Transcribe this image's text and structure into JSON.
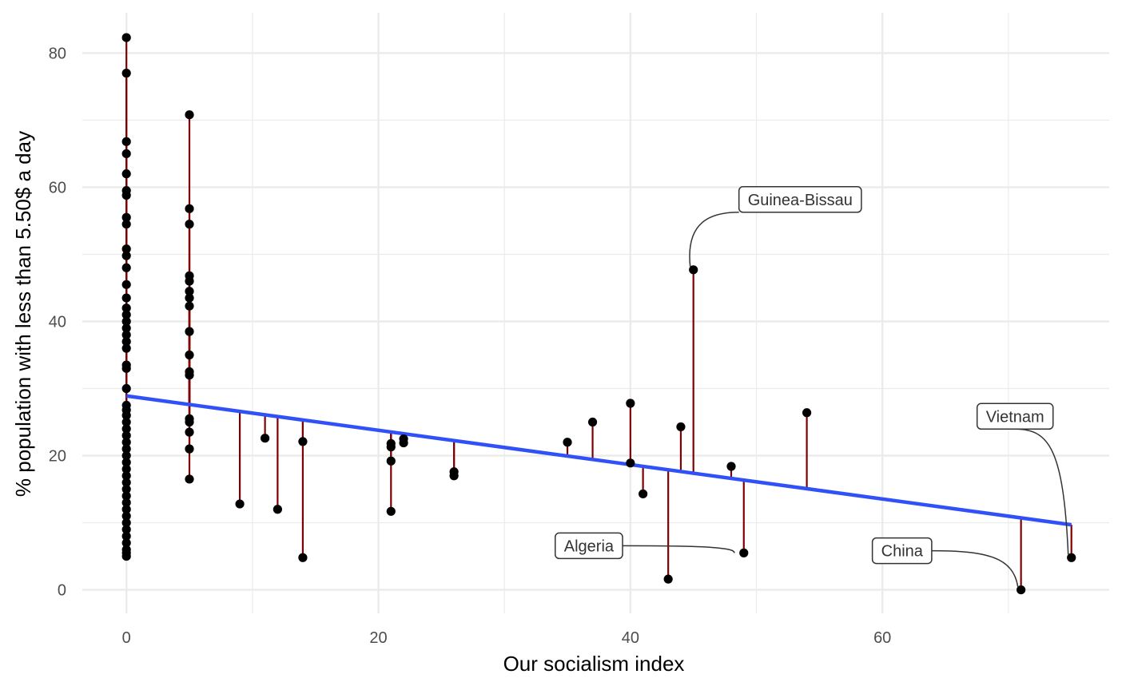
{
  "chart_data": {
    "type": "scatter",
    "xlabel": "Our socialism index",
    "ylabel": "% population with less than 5.50$ a day",
    "xlim": [
      -3.5,
      78
    ],
    "ylim": [
      -3.5,
      86
    ],
    "x_ticks": [
      "0",
      "20",
      "40",
      "60"
    ],
    "y_ticks": [
      "0",
      "20",
      "40",
      "60",
      "80"
    ],
    "grid": true,
    "colors": {
      "points": "#000000",
      "residuals": "#7f0000",
      "fit": "#3050f8",
      "grid": "#ebebeb"
    },
    "fit_line": {
      "intercept": 28.9,
      "slope": -0.256,
      "x_range": [
        0,
        75
      ]
    },
    "points": [
      [
        0,
        82.3
      ],
      [
        0,
        77
      ],
      [
        0,
        66.8
      ],
      [
        0,
        65
      ],
      [
        0,
        62
      ],
      [
        0,
        59.5
      ],
      [
        0,
        58.8
      ],
      [
        0,
        55.5
      ],
      [
        0,
        54.5
      ],
      [
        0,
        50.8
      ],
      [
        0,
        49.8
      ],
      [
        0,
        48
      ],
      [
        0,
        45.5
      ],
      [
        0,
        43.5
      ],
      [
        0,
        42
      ],
      [
        0,
        41
      ],
      [
        0,
        40
      ],
      [
        0,
        39
      ],
      [
        0,
        38
      ],
      [
        0,
        37
      ],
      [
        0,
        36
      ],
      [
        0,
        33.5
      ],
      [
        0,
        33
      ],
      [
        0,
        30
      ],
      [
        0,
        27.5
      ],
      [
        0,
        26.8
      ],
      [
        0,
        26
      ],
      [
        0,
        25
      ],
      [
        0,
        24
      ],
      [
        0,
        23
      ],
      [
        0,
        22
      ],
      [
        0,
        21
      ],
      [
        0,
        20
      ],
      [
        0,
        19
      ],
      [
        0,
        18
      ],
      [
        0,
        17
      ],
      [
        0,
        16
      ],
      [
        0,
        15
      ],
      [
        0,
        14
      ],
      [
        0,
        13
      ],
      [
        0,
        12
      ],
      [
        0,
        11
      ],
      [
        0,
        10
      ],
      [
        0,
        9
      ],
      [
        0,
        8
      ],
      [
        0,
        7
      ],
      [
        0,
        6
      ],
      [
        0,
        5.5
      ],
      [
        0,
        5
      ],
      [
        5,
        70.8
      ],
      [
        5,
        56.8
      ],
      [
        5,
        54.5
      ],
      [
        5,
        46.8
      ],
      [
        5,
        46
      ],
      [
        5,
        44.5
      ],
      [
        5,
        43.5
      ],
      [
        5,
        42.3
      ],
      [
        5,
        38.5
      ],
      [
        5,
        35
      ],
      [
        5,
        32.5
      ],
      [
        5,
        32
      ],
      [
        5,
        25.5
      ],
      [
        5,
        25
      ],
      [
        5,
        23.5
      ],
      [
        5,
        21
      ],
      [
        5,
        16.5
      ],
      [
        9,
        12.8
      ],
      [
        11,
        22.6
      ],
      [
        12,
        12
      ],
      [
        14,
        22.1
      ],
      [
        14,
        4.8
      ],
      [
        21,
        21.8
      ],
      [
        21,
        21.3
      ],
      [
        21,
        19.2
      ],
      [
        21,
        11.7
      ],
      [
        22,
        22.5
      ],
      [
        22,
        21.9
      ],
      [
        26,
        17.6
      ],
      [
        26,
        17
      ],
      [
        35,
        22
      ],
      [
        37,
        25
      ],
      [
        40,
        27.8
      ],
      [
        40,
        18.9
      ],
      [
        41,
        14.3
      ],
      [
        43,
        1.6
      ],
      [
        44,
        24.3
      ],
      [
        45,
        47.7
      ],
      [
        48,
        18.4
      ],
      [
        49,
        5.5
      ],
      [
        54,
        26.4
      ],
      [
        71,
        0
      ],
      [
        75,
        4.8
      ]
    ],
    "annotations": [
      {
        "label": "Guinea-Bissau",
        "x": 45,
        "y": 47.7
      },
      {
        "label": "Vietnam",
        "x": 75,
        "y": 4.8
      },
      {
        "label": "Algeria",
        "x": 49,
        "y": 5.5
      },
      {
        "label": "China",
        "x": 71,
        "y": 0
      }
    ]
  }
}
